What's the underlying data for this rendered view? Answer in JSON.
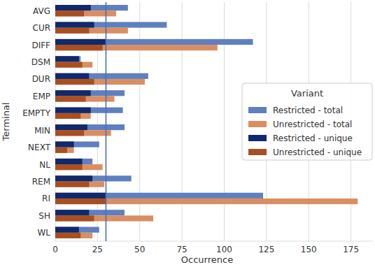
{
  "chart_data": {
    "type": "bar",
    "orientation": "horizontal",
    "x_label": "Occurrence",
    "y_label": "Terminal",
    "legend_title": "Variant",
    "legend": "right",
    "grid": true,
    "categories": [
      "AVG",
      "CUR",
      "DIFF",
      "DSM",
      "DUR",
      "EMP",
      "EMPTY",
      "MIN",
      "NEXT",
      "NL",
      "REM",
      "RI",
      "SH",
      "WL"
    ],
    "series": [
      {
        "name": "Restricted - total",
        "color": "#5f80bf",
        "values": [
          43,
          66,
          117,
          15,
          55,
          41,
          40,
          41,
          26,
          22,
          45,
          123,
          41,
          26
        ]
      },
      {
        "name": "Unrestricted - total",
        "color": "#d98e63",
        "values": [
          36,
          43,
          96,
          22,
          53,
          35,
          21,
          33,
          11,
          28,
          29,
          179,
          58,
          22
        ]
      },
      {
        "name": "Restricted - unique",
        "color": "#10296b",
        "values": [
          21,
          23,
          30,
          14,
          20,
          21,
          21,
          19,
          11,
          16,
          22,
          30,
          20,
          14
        ]
      },
      {
        "name": "Unrestricted - unique",
        "color": "#a84f22",
        "values": [
          17,
          20,
          28,
          16,
          23,
          18,
          15,
          17,
          7,
          16,
          20,
          30,
          23,
          15
        ]
      }
    ],
    "vline": 30,
    "xlim": [
      0,
      188
    ],
    "xticks": [
      0,
      25,
      50,
      75,
      100,
      125,
      150,
      175
    ]
  }
}
